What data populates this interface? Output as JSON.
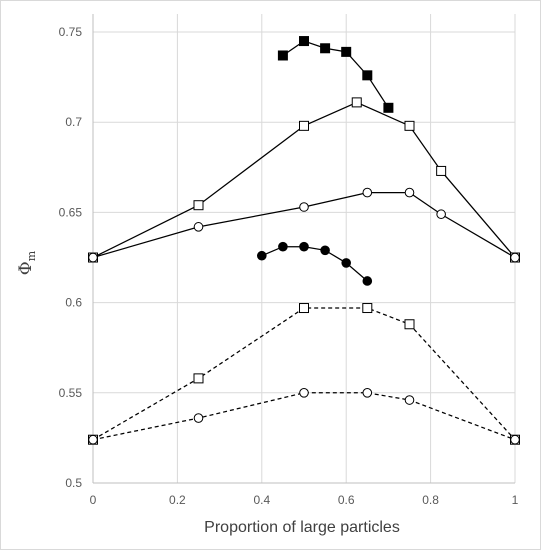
{
  "chart_data": {
    "type": "scatter",
    "xlabel": "Proportion of large particles",
    "ylabel_symbol": "Φ",
    "ylabel_subscript": "m",
    "xlim": [
      0,
      1
    ],
    "ylim": [
      0.5,
      0.76
    ],
    "x_ticks": [
      "0",
      "0.2",
      "0.4",
      "0.6",
      "0.8",
      "1"
    ],
    "y_ticks": [
      "0.5",
      "0.55",
      "0.6",
      "0.65",
      "0.7",
      "0.75"
    ],
    "grid": true,
    "legend": false,
    "series": [
      {
        "marker": "filled-square",
        "line": "solid",
        "x": [
          0.45,
          0.5,
          0.55,
          0.6,
          0.65,
          0.7
        ],
        "y": [
          0.737,
          0.745,
          0.741,
          0.739,
          0.726,
          0.708
        ]
      },
      {
        "marker": "open-square",
        "line": "solid",
        "x": [
          0,
          0.25,
          0.5,
          0.625,
          0.75,
          0.825,
          1
        ],
        "y": [
          0.625,
          0.654,
          0.698,
          0.711,
          0.698,
          0.673,
          0.625
        ]
      },
      {
        "marker": "open-circle",
        "line": "solid",
        "x": [
          0,
          0.25,
          0.5,
          0.65,
          0.75,
          0.825,
          1
        ],
        "y": [
          0.625,
          0.642,
          0.653,
          0.661,
          0.661,
          0.649,
          0.625
        ]
      },
      {
        "marker": "filled-circle",
        "line": "solid",
        "x": [
          0.4,
          0.45,
          0.5,
          0.55,
          0.6,
          0.65
        ],
        "y": [
          0.626,
          0.631,
          0.631,
          0.629,
          0.622,
          0.612
        ]
      },
      {
        "marker": "open-square",
        "line": "dashed",
        "x": [
          0,
          0.25,
          0.5,
          0.65,
          0.75,
          1
        ],
        "y": [
          0.524,
          0.558,
          0.597,
          0.597,
          0.588,
          0.524
        ]
      },
      {
        "marker": "open-circle",
        "line": "dashed",
        "x": [
          0,
          0.25,
          0.5,
          0.65,
          0.75,
          1
        ],
        "y": [
          0.524,
          0.536,
          0.55,
          0.55,
          0.546,
          0.524
        ]
      }
    ]
  }
}
